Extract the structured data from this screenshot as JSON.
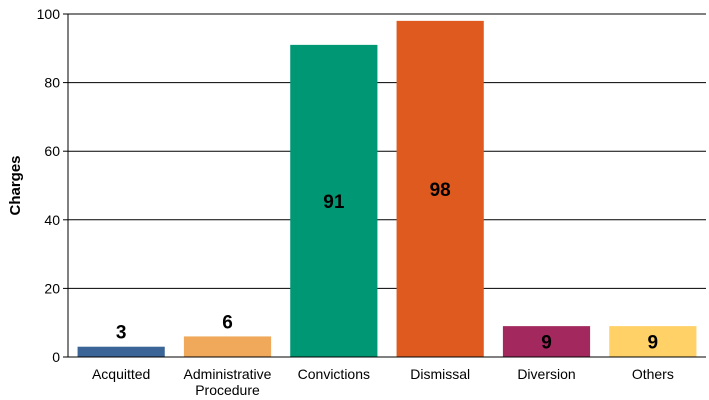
{
  "chart_data": {
    "type": "bar",
    "title": "",
    "xlabel": "",
    "ylabel": "Charges",
    "ylim": [
      0,
      100
    ],
    "yticks": [
      0,
      20,
      40,
      60,
      80,
      100
    ],
    "grid": true,
    "categories": [
      [
        "Acquitted"
      ],
      [
        "Administrative",
        "Procedure"
      ],
      [
        "Convictions"
      ],
      [
        "Dismissal"
      ],
      [
        "Diversion"
      ],
      [
        "Others"
      ]
    ],
    "values": [
      3,
      6,
      91,
      98,
      9,
      9
    ],
    "colors": [
      "#3B6596",
      "#F0A95A",
      "#009874",
      "#DE5A1E",
      "#A3285E",
      "#FFD166"
    ]
  }
}
